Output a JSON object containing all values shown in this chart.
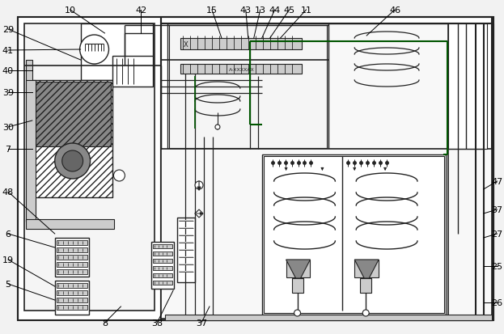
{
  "bg": "#f2f2f2",
  "lc": "#444444",
  "dc": "#222222",
  "grn": "#005500",
  "gray1": "#aaaaaa",
  "gray2": "#888888",
  "gray3": "#cccccc",
  "gray4": "#666666"
}
